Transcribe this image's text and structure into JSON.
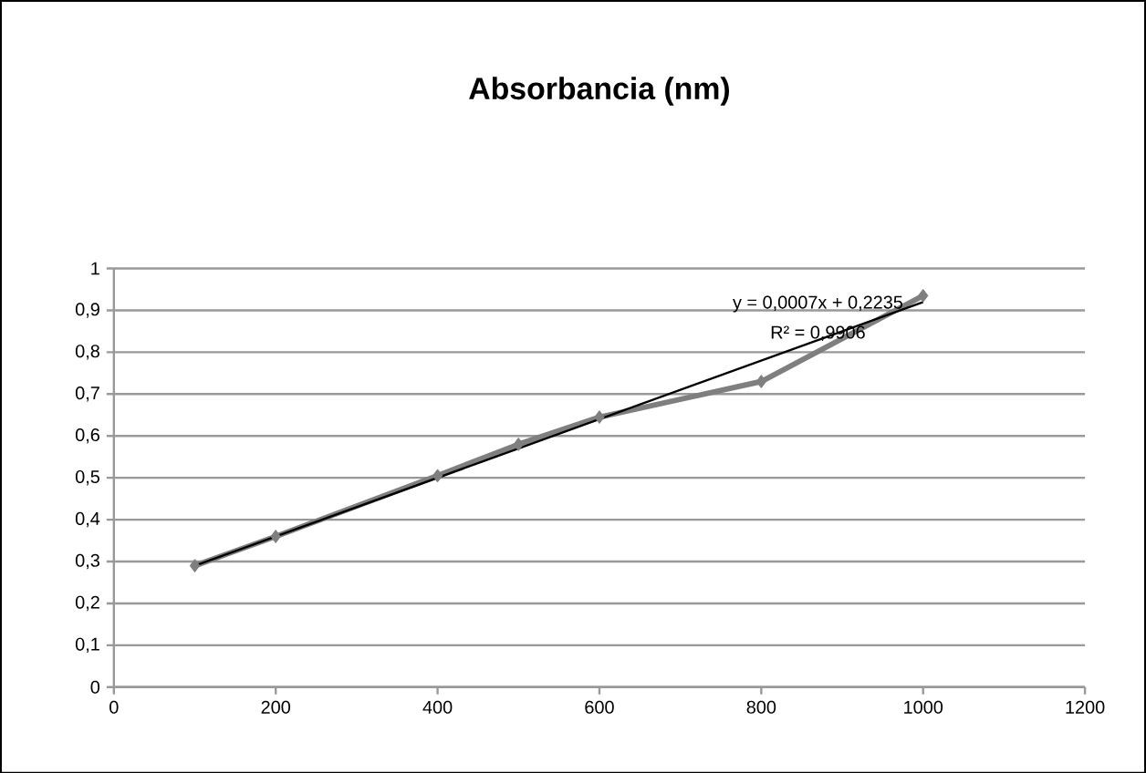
{
  "chart_data": {
    "type": "line",
    "title": "Absorbancia (nm)",
    "xlim": [
      0,
      1200
    ],
    "xticks": [
      0,
      200,
      400,
      600,
      800,
      1000,
      1200
    ],
    "ylim": [
      0,
      1
    ],
    "yticks": [
      0,
      {
        "value": 0.1,
        "label": "0,1"
      },
      {
        "value": 0.2,
        "label": "0,2"
      },
      {
        "value": 0.3,
        "label": "0,3"
      },
      {
        "value": 0.4,
        "label": "0,4"
      },
      {
        "value": 0.5,
        "label": "0,5"
      },
      {
        "value": 0.6,
        "label": "0,6"
      },
      {
        "value": 0.7,
        "label": "0,7"
      },
      {
        "value": 0.8,
        "label": "0,8"
      },
      {
        "value": 0.9,
        "label": "0,9"
      },
      1
    ],
    "grid": "y",
    "marker": "diamond",
    "series": [
      {
        "color": "#7f7f7f",
        "x": [
          100,
          200,
          400,
          500,
          600,
          800,
          1000
        ],
        "values": [
          0.29,
          0.36,
          0.505,
          0.58,
          0.645,
          0.73,
          0.935
        ]
      },
      {
        "color": "#000000",
        "marker": "none",
        "x": [
          100,
          1000
        ],
        "values": [
          0.29,
          0.92
        ]
      }
    ],
    "annotations": [
      "y = 0,0007x + 0,2235",
      "R² = 0,9906"
    ]
  }
}
